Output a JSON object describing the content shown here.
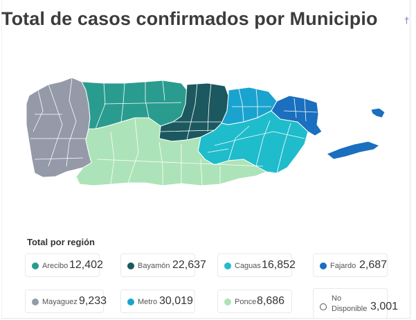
{
  "title": "Total de casos confirmados por Municipio",
  "title_mark": "†",
  "legend": {
    "heading": "Total por región",
    "items": [
      {
        "name": "Arecibo",
        "value": "12,402",
        "color": "#2a9c8f"
      },
      {
        "name": "Bayamón",
        "value": "22,637",
        "color": "#1c5860"
      },
      {
        "name": "Caguas",
        "value": "16,852",
        "color": "#1fbccc"
      },
      {
        "name": "Fajardo",
        "value": "2,687",
        "color": "#1a6fbf"
      },
      {
        "name": "Mayaguez",
        "value": "9,233",
        "color": "#949aa8"
      },
      {
        "name": "Metro",
        "value": "30,019",
        "color": "#1aa3cf"
      },
      {
        "name": "Ponce",
        "value": "8,686",
        "color": "#ade3b8"
      },
      {
        "name": "No Disponible",
        "value": "3,001",
        "color": "#ffffff"
      }
    ]
  }
}
